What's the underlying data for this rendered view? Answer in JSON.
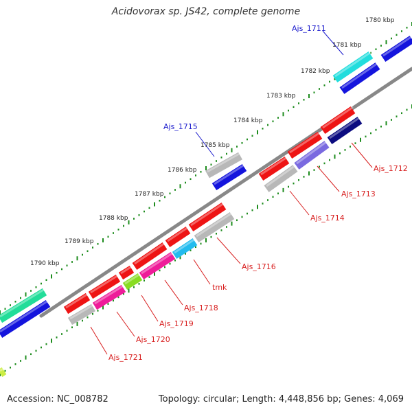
{
  "title": "Acidovorax sp. JS42, complete genome",
  "footer": {
    "accession": "Accession: NC_008782",
    "summary": "Topology: circular; Length: 4,448,856 bp; Genes: 4,069"
  },
  "colors": {
    "axis_tick": "#1e8c1e",
    "backbone": "#888888",
    "forward_label": "#1a1acc",
    "reverse_label": "#d81e1e"
  },
  "scale_labels": [
    "1780 kbp",
    "1781 kbp",
    "1782 kbp",
    "1783 kbp",
    "1784 kbp",
    "1785 kbp",
    "1786 kbp",
    "1787 kbp",
    "1788 kbp",
    "1789 kbp",
    "1790 kbp"
  ],
  "gene_labels": [
    {
      "text": "Ajs_1711",
      "strand": "forward"
    },
    {
      "text": "Ajs_1715",
      "strand": "forward"
    },
    {
      "text": "Ajs_1712",
      "strand": "reverse"
    },
    {
      "text": "Ajs_1713",
      "strand": "reverse"
    },
    {
      "text": "Ajs_1714",
      "strand": "reverse"
    },
    {
      "text": "Ajs_1716",
      "strand": "reverse"
    },
    {
      "text": "tmk",
      "strand": "reverse"
    },
    {
      "text": "Ajs_1718",
      "strand": "reverse"
    },
    {
      "text": "Ajs_1719",
      "strand": "reverse"
    },
    {
      "text": "Ajs_1720",
      "strand": "reverse"
    },
    {
      "text": "Ajs_1721",
      "strand": "reverse"
    }
  ]
}
